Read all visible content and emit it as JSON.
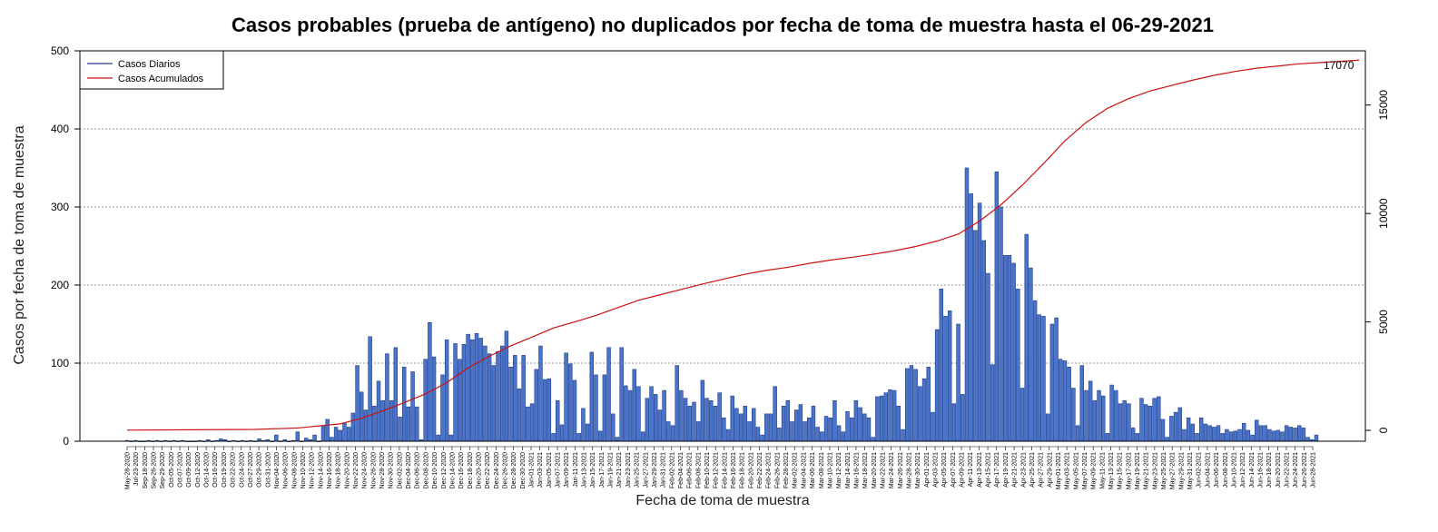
{
  "chart_data": {
    "type": "bar",
    "title": "Casos probables (prueba de antígeno) no duplicados por fecha de toma de muestra hasta el 06-29-2021",
    "xlabel": "Fecha de toma de muestra",
    "ylabel": "Casos por fecha de toma de muestra",
    "ylim": [
      0,
      500
    ],
    "y_ticks": [
      0,
      100,
      200,
      300,
      400,
      500
    ],
    "y2lim": [
      -500,
      17500
    ],
    "y2_ticks": [
      0,
      5000,
      10000,
      15000
    ],
    "grid": "horizontal dotted",
    "legend_position": "top-left",
    "series": [
      {
        "name": "Casos Diarios",
        "color": "#1e3d8f",
        "fill": "#4a74c9",
        "values": [
          1,
          0,
          1,
          0,
          0,
          1,
          0,
          1,
          0,
          1,
          0,
          1,
          0,
          1,
          0,
          0,
          0,
          1,
          0,
          2,
          0,
          1,
          3,
          2,
          0,
          1,
          0,
          1,
          0,
          1,
          0,
          3,
          1,
          2,
          0,
          8,
          0,
          2,
          0,
          1,
          12,
          0,
          4,
          2,
          8,
          0,
          20,
          28,
          5,
          18,
          14,
          23,
          18,
          36,
          97,
          63,
          40,
          134,
          45,
          77,
          52,
          112,
          52,
          120,
          31,
          95,
          44,
          89,
          44,
          2,
          105,
          152,
          108,
          8,
          85,
          130,
          8,
          125,
          105,
          124,
          137,
          130,
          138,
          132,
          122,
          112,
          97,
          115,
          122,
          141,
          95,
          110,
          67,
          110,
          44,
          48,
          92,
          122,
          79,
          80,
          10,
          52,
          21,
          113,
          99,
          78,
          10,
          42,
          22,
          114,
          85,
          13,
          85,
          120,
          35,
          5,
          120,
          71,
          65,
          92,
          70,
          12,
          55,
          70,
          60,
          40,
          65,
          25,
          20,
          97,
          65,
          55,
          45,
          50,
          25,
          78,
          55,
          52,
          45,
          62,
          30,
          15,
          58,
          42,
          35,
          45,
          25,
          42,
          18,
          8,
          35,
          35,
          70,
          17,
          45,
          52,
          25,
          40,
          47,
          25,
          30,
          45,
          18,
          12,
          32,
          30,
          52,
          20,
          12,
          38,
          30,
          52,
          43,
          35,
          30,
          5,
          57,
          58,
          62,
          66,
          65,
          45,
          15,
          93,
          97,
          92,
          70,
          80,
          95,
          37,
          143,
          195,
          160,
          167,
          48,
          150,
          60,
          350,
          317,
          270,
          305,
          257,
          215,
          98,
          345,
          300,
          238,
          238,
          228,
          195,
          68,
          265,
          222,
          180,
          162,
          160,
          35,
          150,
          158,
          105,
          103,
          95,
          68,
          20,
          97,
          65,
          77,
          52,
          65,
          58,
          10,
          72,
          65,
          48,
          52,
          48,
          17,
          10,
          55,
          47,
          45,
          55,
          57,
          28,
          5,
          32,
          37,
          43,
          15,
          30,
          22,
          10,
          30,
          22,
          20,
          18,
          20,
          10,
          15,
          12,
          13,
          15,
          23,
          14,
          8,
          27,
          20,
          20,
          15,
          13,
          14,
          12,
          20,
          18,
          17,
          20,
          17,
          5,
          2,
          8
        ]
      },
      {
        "name": "Casos Acumulados",
        "color": "#cc1010",
        "knots": [
          [
            0,
            10
          ],
          [
            30,
            45
          ],
          [
            40,
            110
          ],
          [
            50,
            300
          ],
          [
            55,
            560
          ],
          [
            60,
            900
          ],
          [
            65,
            1280
          ],
          [
            70,
            1680
          ],
          [
            75,
            2200
          ],
          [
            80,
            2880
          ],
          [
            85,
            3420
          ],
          [
            90,
            3900
          ],
          [
            95,
            4300
          ],
          [
            100,
            4720
          ],
          [
            105,
            5000
          ],
          [
            110,
            5300
          ],
          [
            115,
            5650
          ],
          [
            120,
            6000
          ],
          [
            125,
            6250
          ],
          [
            130,
            6500
          ],
          [
            135,
            6750
          ],
          [
            140,
            6980
          ],
          [
            145,
            7200
          ],
          [
            150,
            7380
          ],
          [
            155,
            7520
          ],
          [
            160,
            7700
          ],
          [
            165,
            7850
          ],
          [
            170,
            7980
          ],
          [
            175,
            8120
          ],
          [
            180,
            8280
          ],
          [
            185,
            8480
          ],
          [
            190,
            8730
          ],
          [
            195,
            9050
          ],
          [
            200,
            9650
          ],
          [
            205,
            10400
          ],
          [
            210,
            11300
          ],
          [
            215,
            12300
          ],
          [
            220,
            13350
          ],
          [
            225,
            14200
          ],
          [
            230,
            14850
          ],
          [
            235,
            15300
          ],
          [
            240,
            15650
          ],
          [
            245,
            15900
          ],
          [
            250,
            16150
          ],
          [
            255,
            16370
          ],
          [
            260,
            16550
          ],
          [
            265,
            16700
          ],
          [
            270,
            16800
          ],
          [
            275,
            16900
          ],
          [
            280,
            16960
          ],
          [
            285,
            17020
          ],
          [
            289,
            17070
          ]
        ]
      }
    ],
    "end_label": "17070",
    "x_tick_labels": [
      "May-28-2020",
      "Jul-23-2020",
      "Sep-18-2020",
      "Sep-26-2020",
      "Sep-29-2020",
      "Oct-05-2020",
      "Oct-07-2020",
      "Oct-09-2020",
      "Oct-12-2020",
      "Oct-14-2020",
      "Oct-16-2020",
      "Oct-19-2020",
      "Oct-22-2020",
      "Oct-24-2020",
      "Oct-27-2020",
      "Oct-29-2020",
      "Oct-31-2020",
      "Nov-04-2020",
      "Nov-06-2020",
      "Nov-08-2020",
      "Nov-10-2020",
      "Nov-12-2020",
      "Nov-14-2020",
      "Nov-16-2020",
      "Nov-18-2020",
      "Nov-20-2020",
      "Nov-22-2020",
      "Nov-24-2020",
      "Nov-26-2020",
      "Nov-28-2020",
      "Nov-30-2020",
      "Dec-02-2020",
      "Dec-04-2020",
      "Dec-06-2020",
      "Dec-08-2020",
      "Dec-10-2020",
      "Dec-12-2020",
      "Dec-14-2020",
      "Dec-16-2020",
      "Dec-18-2020",
      "Dec-20-2020",
      "Dec-22-2020",
      "Dec-24-2020",
      "Dec-26-2020",
      "Dec-28-2020",
      "Dec-30-2020",
      "Jan-01-2021",
      "Jan-03-2021",
      "Jan-05-2021",
      "Jan-07-2021",
      "Jan-09-2021",
      "Jan-11-2021",
      "Jan-13-2021",
      "Jan-15-2021",
      "Jan-17-2021",
      "Jan-19-2021",
      "Jan-21-2021",
      "Jan-23-2021",
      "Jan-25-2021",
      "Jan-27-2021",
      "Jan-29-2021",
      "Jan-31-2021",
      "Feb-02-2021",
      "Feb-04-2021",
      "Feb-06-2021",
      "Feb-08-2021",
      "Feb-10-2021",
      "Feb-12-2021",
      "Feb-14-2021",
      "Feb-16-2021",
      "Feb-18-2021",
      "Feb-20-2021",
      "Feb-22-2021",
      "Feb-24-2021",
      "Feb-26-2021",
      "Feb-28-2021",
      "Mar-02-2021",
      "Mar-04-2021",
      "Mar-06-2021",
      "Mar-08-2021",
      "Mar-10-2021",
      "Mar-12-2021",
      "Mar-14-2021",
      "Mar-16-2021",
      "Mar-18-2021",
      "Mar-20-2021",
      "Mar-22-2021",
      "Mar-24-2021",
      "Mar-26-2021",
      "Mar-28-2021",
      "Mar-30-2021",
      "Apr-01-2021",
      "Apr-03-2021",
      "Apr-05-2021",
      "Apr-07-2021",
      "Apr-09-2021",
      "Apr-11-2021",
      "Apr-13-2021",
      "Apr-15-2021",
      "Apr-17-2021",
      "Apr-19-2021",
      "Apr-21-2021",
      "Apr-23-2021",
      "Apr-25-2021",
      "Apr-27-2021",
      "Apr-29-2021",
      "May-01-2021",
      "May-03-2021",
      "May-05-2021",
      "May-07-2021",
      "May-09-2021",
      "May-11-2021",
      "May-13-2021",
      "May-15-2021",
      "May-17-2021",
      "May-19-2021",
      "May-21-2021",
      "May-23-2021",
      "May-25-2021",
      "May-27-2021",
      "May-29-2021",
      "May-31-2021",
      "Jun-02-2021",
      "Jun-04-2021",
      "Jun-06-2021",
      "Jun-08-2021",
      "Jun-10-2021",
      "Jun-12-2021",
      "Jun-14-2021",
      "Jun-16-2021",
      "Jun-18-2021",
      "Jun-20-2021",
      "Jun-22-2021",
      "Jun-24-2021",
      "Jun-26-2021",
      "Jun-28-2021"
    ]
  }
}
